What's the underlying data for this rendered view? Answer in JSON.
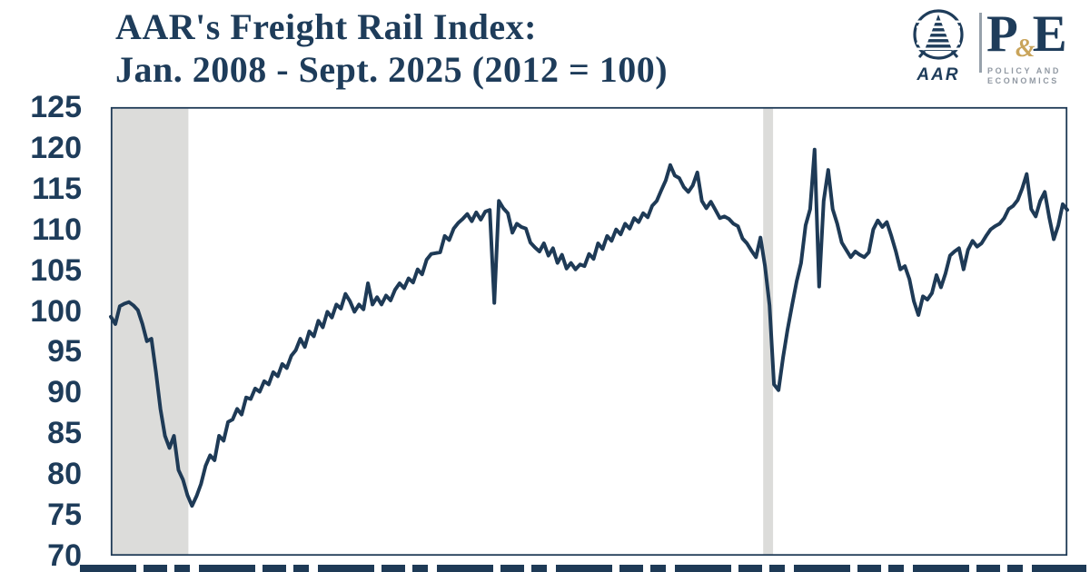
{
  "header": {
    "title_line1": "AAR's Freight Rail Index:",
    "title_line2": "Jan. 2008 - Sept. 2025 (2012 = 100)"
  },
  "logo": {
    "aar_text": "AAR",
    "pe_p": "P",
    "pe_amp": "&",
    "pe_e": "E",
    "pe_sub_line1": "POLICY AND",
    "pe_sub_line2": "ECONOMICS"
  },
  "colors": {
    "navy": "#1e3a56",
    "title_navy": "#1e3c5a",
    "band_gray": "#dcdcda",
    "divider_gray": "#97a1ab",
    "amp_gold": "#c9a45a",
    "sub_text_gray": "#9199a3"
  },
  "chart_data": {
    "type": "line",
    "title": "AAR's Freight Rail Index: Jan. 2008 - Sept. 2025 (2012 = 100)",
    "x_start": "2008-01",
    "x_end": "2025-09",
    "frequency": "monthly",
    "ylim": [
      70,
      125
    ],
    "y_ticks": [
      125,
      120,
      115,
      110,
      105,
      100,
      95,
      90,
      85,
      80,
      75,
      70
    ],
    "grid": false,
    "legend": false,
    "plot_border": true,
    "recession_bands": [
      {
        "start_month_index": 0,
        "end_month_index": 17.2
      },
      {
        "start_month_index": 144.6,
        "end_month_index": 146.8
      }
    ],
    "series": [
      {
        "name": "AAR Freight Rail Index (2012 = 100)",
        "values": [
          99.3,
          98.4,
          100.6,
          100.9,
          101.1,
          100.7,
          100.1,
          98.4,
          96.3,
          96.6,
          92.5,
          88.0,
          84.7,
          83.2,
          84.7,
          80.5,
          79.3,
          77.4,
          76.1,
          77.3,
          78.8,
          81.0,
          82.3,
          81.7,
          84.7,
          84.1,
          86.4,
          86.7,
          88.0,
          87.3,
          89.4,
          89.2,
          90.5,
          90.1,
          91.4,
          91.0,
          92.5,
          92.0,
          93.5,
          93.0,
          94.5,
          95.2,
          96.6,
          95.6,
          97.5,
          96.9,
          98.8,
          98.0,
          99.9,
          99.2,
          100.8,
          100.3,
          102.1,
          101.2,
          99.9,
          100.8,
          100.2,
          103.4,
          100.8,
          101.7,
          100.8,
          101.9,
          101.3,
          102.6,
          103.4,
          102.8,
          104.0,
          103.5,
          105.1,
          104.5,
          106.3,
          107.0,
          107.1,
          107.2,
          109.2,
          108.7,
          110.1,
          110.8,
          111.3,
          111.9,
          111.0,
          112.1,
          111.2,
          112.2,
          112.4,
          101.0,
          113.5,
          112.6,
          112.0,
          109.6,
          110.7,
          110.3,
          110.1,
          108.4,
          107.8,
          107.3,
          108.3,
          106.8,
          107.7,
          105.9,
          106.9,
          105.2,
          105.9,
          105.1,
          105.7,
          105.5,
          107.0,
          106.4,
          108.3,
          107.6,
          109.2,
          108.6,
          110.0,
          109.4,
          110.7,
          110.1,
          111.4,
          110.9,
          112.0,
          111.5,
          112.9,
          113.5,
          114.8,
          116.0,
          117.9,
          116.6,
          116.3,
          115.2,
          114.6,
          115.4,
          117.0,
          113.5,
          112.6,
          113.4,
          112.4,
          111.4,
          111.6,
          111.3,
          110.7,
          110.4,
          108.9,
          108.3,
          107.4,
          106.6,
          109.0,
          105.5,
          100.7,
          91.0,
          90.3,
          94.3,
          97.7,
          100.7,
          103.6,
          105.9,
          110.5,
          112.5,
          119.8,
          103.0,
          113.5,
          117.3,
          112.5,
          110.7,
          108.4,
          107.5,
          106.6,
          107.3,
          106.9,
          106.6,
          107.2,
          110.0,
          111.1,
          110.3,
          110.9,
          109.2,
          107.3,
          105.1,
          105.5,
          103.9,
          101.2,
          99.5,
          101.8,
          101.4,
          102.2,
          104.4,
          102.9,
          104.6,
          106.8,
          107.3,
          107.7,
          105.1,
          107.5,
          108.6,
          107.9,
          108.3,
          109.2,
          110.0,
          110.4,
          110.7,
          111.4,
          112.5,
          112.9,
          113.6,
          115.0,
          116.8,
          112.5,
          111.6,
          113.5,
          114.6,
          111.5,
          108.8,
          110.5,
          113.1,
          112.4
        ]
      }
    ]
  }
}
